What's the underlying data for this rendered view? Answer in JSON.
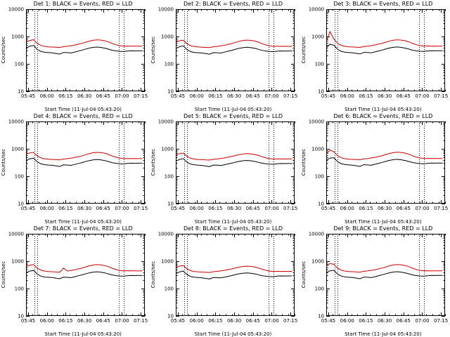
{
  "style": {
    "background": "#ffffff",
    "axis_color": "#000000"
  },
  "chart_data": {
    "type": "line",
    "grid": "3x3",
    "title_note": "Each panel: detector count-rate time series, BLACK = Events, RED = LLD",
    "ylabel": "Counts/sec",
    "xlabel": "Start Time (11-Jul-04 05:43:20)",
    "yscale": "log",
    "ylim": [
      10,
      10000
    ],
    "xlim_minutes": [
      0,
      95
    ],
    "axis_color": "#000000",
    "x_minutes": [
      0,
      3,
      6,
      9,
      12,
      15,
      18,
      21,
      24,
      27,
      30,
      33,
      36,
      39,
      42,
      45,
      48,
      51,
      54,
      57,
      60,
      63,
      66,
      69,
      72,
      75,
      78,
      81,
      84,
      87,
      90,
      93
    ],
    "xticks": {
      "positions_minutes": [
        1.7,
        16.7,
        31.7,
        46.7,
        61.7,
        76.7,
        91.7
      ],
      "labels": [
        "05:45",
        "06:00",
        "06:15",
        "06:30",
        "06:45",
        "07:00",
        "07:15"
      ]
    },
    "yticks": {
      "values": [
        10,
        100,
        1000,
        10000
      ]
    },
    "vlines_minutes": [
      {
        "x": 6.5,
        "style": "dotted"
      },
      {
        "x": 9,
        "style": "dotted"
      },
      {
        "x": 74,
        "style": "dotted"
      },
      {
        "x": 78,
        "style": "dotted"
      }
    ],
    "series_legend": [
      {
        "name": "Events",
        "color": "#000000"
      },
      {
        "name": "LLD",
        "color": "#cc0000"
      }
    ],
    "panels": [
      {
        "title": "Det 1: BLACK = Events, RED = LLD",
        "events": [
          380,
          440,
          470,
          340,
          285,
          265,
          258,
          252,
          240,
          228,
          262,
          258,
          250,
          272,
          295,
          320,
          352,
          380,
          402,
          412,
          398,
          375,
          345,
          315,
          298,
          288,
          282,
          295,
          300,
          298,
          300,
          300
        ],
        "lld": [
          640,
          720,
          760,
          560,
          470,
          435,
          420,
          412,
          405,
          398,
          428,
          440,
          462,
          488,
          525,
          565,
          625,
          685,
          735,
          755,
          738,
          698,
          635,
          555,
          498,
          462,
          442,
          448,
          443,
          446,
          442,
          445
        ]
      },
      {
        "title": "Det 2: BLACK = Events, RED = LLD",
        "events": [
          365,
          425,
          455,
          332,
          280,
          262,
          255,
          250,
          238,
          226,
          258,
          255,
          248,
          269,
          291,
          315,
          346,
          373,
          395,
          405,
          392,
          370,
          341,
          312,
          295,
          285,
          280,
          292,
          297,
          295,
          297,
          297
        ],
        "lld": [
          620,
          700,
          730,
          545,
          462,
          430,
          415,
          408,
          400,
          394,
          422,
          434,
          456,
          481,
          517,
          556,
          614,
          672,
          721,
          740,
          724,
          685,
          623,
          546,
          491,
          456,
          437,
          443,
          438,
          441,
          437,
          440
        ]
      },
      {
        "title": "Det 3: BLACK = Events, RED = LLD",
        "events": [
          390,
          520,
          480,
          345,
          288,
          267,
          260,
          254,
          242,
          230,
          264,
          260,
          252,
          274,
          298,
          322,
          355,
          383,
          405,
          415,
          400,
          377,
          347,
          317,
          300,
          290,
          284,
          297,
          302,
          300,
          302,
          302
        ],
        "lld": [
          660,
          1500,
          820,
          570,
          476,
          438,
          422,
          414,
          407,
          400,
          430,
          442,
          465,
          491,
          528,
          568,
          628,
          688,
          738,
          758,
          740,
          700,
          638,
          558,
          500,
          464,
          444,
          450,
          445,
          448,
          444,
          447
        ]
      },
      {
        "title": "Det 4: BLACK = Events, RED = LLD",
        "events": [
          372,
          432,
          458,
          336,
          283,
          263,
          256,
          251,
          239,
          227,
          260,
          256,
          249,
          270,
          293,
          317,
          349,
          376,
          398,
          408,
          395,
          372,
          343,
          313,
          296,
          286,
          281,
          293,
          299,
          297,
          299,
          299
        ],
        "lld": [
          630,
          710,
          745,
          552,
          466,
          432,
          417,
          410,
          402,
          396,
          425,
          437,
          459,
          484,
          520,
          560,
          618,
          677,
          726,
          744,
          728,
          688,
          627,
          549,
          494,
          459,
          439,
          446,
          441,
          444,
          440,
          443
        ]
      },
      {
        "title": "Det 5: BLACK = Events, RED = LLD",
        "events": [
          355,
          410,
          440,
          325,
          276,
          260,
          253,
          248,
          236,
          225,
          255,
          252,
          246,
          263,
          282,
          302,
          328,
          350,
          368,
          376,
          366,
          348,
          322,
          299,
          284,
          277,
          273,
          285,
          291,
          289,
          291,
          291
        ],
        "lld": [
          600,
          670,
          700,
          530,
          452,
          422,
          408,
          402,
          395,
          389,
          415,
          426,
          446,
          468,
          498,
          530,
          575,
          618,
          655,
          668,
          655,
          625,
          575,
          515,
          468,
          440,
          425,
          430,
          428,
          430,
          427,
          429
        ]
      },
      {
        "title": "Det 6: BLACK = Events, RED = LLD",
        "events": [
          385,
          460,
          475,
          342,
          287,
          266,
          259,
          253,
          241,
          229,
          263,
          259,
          251,
          273,
          297,
          321,
          354,
          382,
          404,
          414,
          399,
          376,
          346,
          316,
          299,
          289,
          283,
          296,
          301,
          299,
          301,
          301
        ],
        "lld": [
          650,
          900,
          790,
          565,
          472,
          436,
          421,
          413,
          406,
          399,
          429,
          441,
          463,
          489,
          526,
          566,
          626,
          686,
          736,
          756,
          739,
          699,
          636,
          556,
          499,
          463,
          443,
          449,
          444,
          447,
          443,
          446
        ]
      },
      {
        "title": "Det 7: BLACK = Events, RED = LLD",
        "events": [
          375,
          435,
          460,
          338,
          284,
          264,
          257,
          252,
          240,
          228,
          261,
          257,
          250,
          271,
          294,
          318,
          350,
          378,
          400,
          410,
          396,
          374,
          344,
          314,
          297,
          287,
          282,
          294,
          300,
          298,
          300,
          300
        ],
        "lld": [
          635,
          715,
          750,
          555,
          468,
          434,
          419,
          411,
          404,
          397,
          560,
          438,
          460,
          485,
          522,
          562,
          620,
          680,
          730,
          748,
          730,
          690,
          630,
          550,
          495,
          460,
          440,
          447,
          442,
          445,
          441,
          444
        ]
      },
      {
        "title": "Det 8: BLACK = Events, RED = LLD",
        "events": [
          352,
          406,
          436,
          323,
          274,
          258,
          252,
          247,
          235,
          224,
          253,
          250,
          245,
          261,
          280,
          300,
          325,
          347,
          365,
          373,
          363,
          345,
          320,
          297,
          282,
          275,
          272,
          284,
          290,
          288,
          290,
          290
        ],
        "lld": [
          590,
          660,
          690,
          525,
          448,
          419,
          406,
          400,
          393,
          387,
          412,
          423,
          442,
          464,
          492,
          522,
          566,
          608,
          645,
          658,
          645,
          616,
          567,
          509,
          463,
          436,
          421,
          427,
          423,
          425,
          422,
          424
        ]
      },
      {
        "title": "Det 9: BLACK = Events, RED = LLD",
        "events": [
          380,
          445,
          465,
          340,
          286,
          265,
          258,
          253,
          241,
          229,
          262,
          258,
          251,
          272,
          296,
          320,
          352,
          380,
          402,
          412,
          398,
          376,
          345,
          315,
          298,
          288,
          283,
          295,
          301,
          299,
          301,
          301
        ],
        "lld": [
          645,
          820,
          770,
          560,
          470,
          435,
          420,
          412,
          405,
          398,
          428,
          440,
          462,
          487,
          524,
          564,
          624,
          684,
          734,
          752,
          736,
          697,
          634,
          554,
          497,
          461,
          442,
          448,
          443,
          446,
          442,
          445
        ]
      }
    ]
  }
}
